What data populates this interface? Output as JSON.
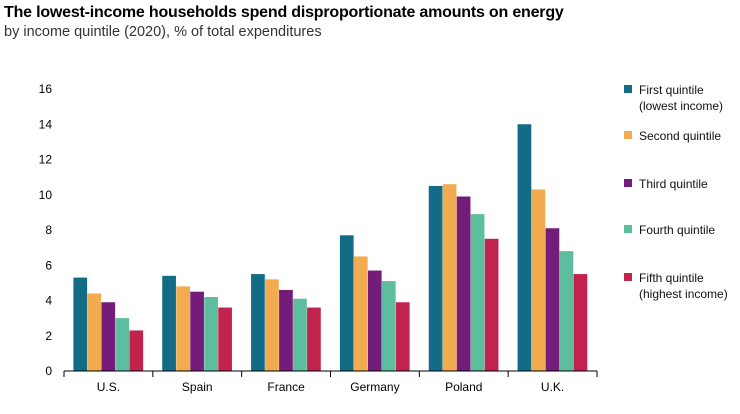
{
  "header": {
    "title": "The lowest-income households spend disproportionate amounts on energy",
    "subtitle": "by income quintile (2020), % of total expenditures"
  },
  "chart_data": {
    "type": "bar",
    "title": "The lowest-income households spend disproportionate amounts on energy",
    "subtitle": "by income quintile (2020), % of total expenditures",
    "categories": [
      "U.S.",
      "Spain",
      "France",
      "Germany",
      "Poland",
      "U.K."
    ],
    "series": [
      {
        "name": "First quintile\n(lowest income)",
        "color": "#126c86",
        "values": [
          5.3,
          5.4,
          5.5,
          7.7,
          10.5,
          14.0
        ]
      },
      {
        "name": "Second quintile",
        "color": "#f2ab4f",
        "values": [
          4.4,
          4.8,
          5.2,
          6.5,
          10.6,
          10.3
        ]
      },
      {
        "name": "Third quintile",
        "color": "#731c7a",
        "values": [
          3.9,
          4.5,
          4.6,
          5.7,
          9.9,
          8.1
        ]
      },
      {
        "name": "Fourth quintile",
        "color": "#5dbe9f",
        "values": [
          3.0,
          4.2,
          4.1,
          5.1,
          8.9,
          6.8
        ]
      },
      {
        "name": "Fifth quintile\n(highest income)",
        "color": "#c2224e",
        "values": [
          2.3,
          3.6,
          3.6,
          3.9,
          7.5,
          5.5
        ]
      }
    ],
    "ylim": [
      0,
      16
    ],
    "yticks": [
      0,
      2,
      4,
      6,
      8,
      10,
      12,
      14,
      16
    ],
    "grid": false,
    "legend_position": "right"
  }
}
